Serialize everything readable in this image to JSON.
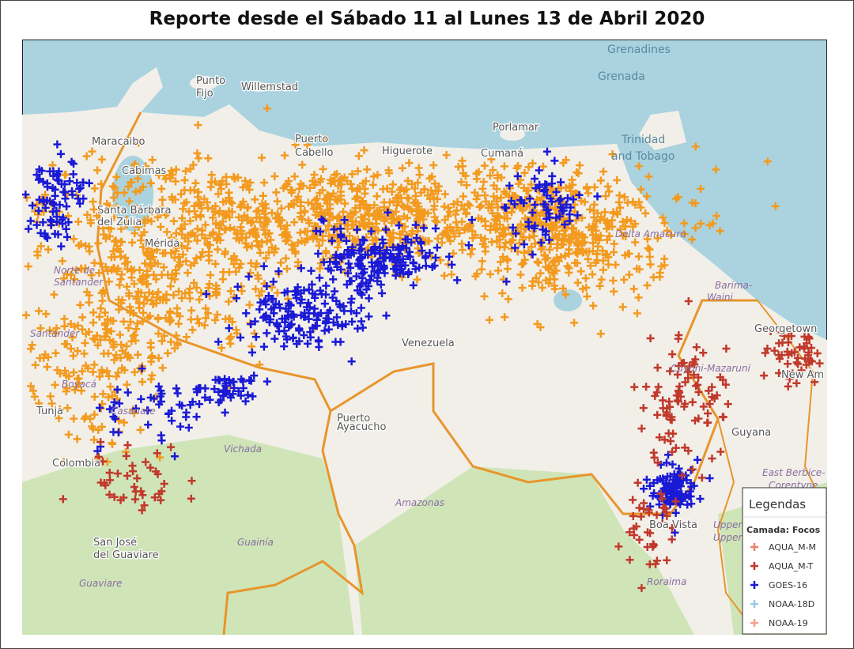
{
  "title": "Reporte desde el Sábado 11 al Lunes 13 de Abril 2020",
  "map": {
    "labels": [
      "Grenadines",
      "Grenada",
      "Punto",
      "Fijo",
      "Willemstad",
      "Puerto",
      "Cabello",
      "Higuerote",
      "Porlamar",
      "Cumaná",
      "Trinidad",
      "and Tobago",
      "Maracaibo",
      "Cabimas",
      "Santa Bárbara",
      "del Zulia",
      "Mérida",
      "Norte de",
      "Santander",
      "Santander",
      "Boyacá",
      "Tunja",
      "Casanare",
      "Colombia",
      "Vichada",
      "Puerto",
      "Ayacucho",
      "Venezuela",
      "Amazonas",
      "Guainía",
      "San José",
      "del Guaviare",
      "Guaviare",
      "Delta Amacuro",
      "Barima-",
      "Waini",
      "Cuyuni-Mazaruni",
      "Georgetown",
      "New Am",
      "Guyana",
      "East Berbice-",
      "Corentyne",
      "Boa Vista",
      "Roraima",
      "Upper",
      "Upper"
    ]
  },
  "legend": {
    "title": "Legendas",
    "subtitle": "Camada: Focos",
    "items": [
      {
        "name": "AQUA_M-M",
        "color": "#e8826a"
      },
      {
        "name": "AQUA_M-T",
        "color": "#c0392b"
      },
      {
        "name": "GOES-16",
        "color": "#1a1ad6"
      },
      {
        "name": "NOAA-18D",
        "color": "#9ecae1"
      },
      {
        "name": "NOAA-19",
        "color": "#f4a090"
      }
    ]
  }
}
